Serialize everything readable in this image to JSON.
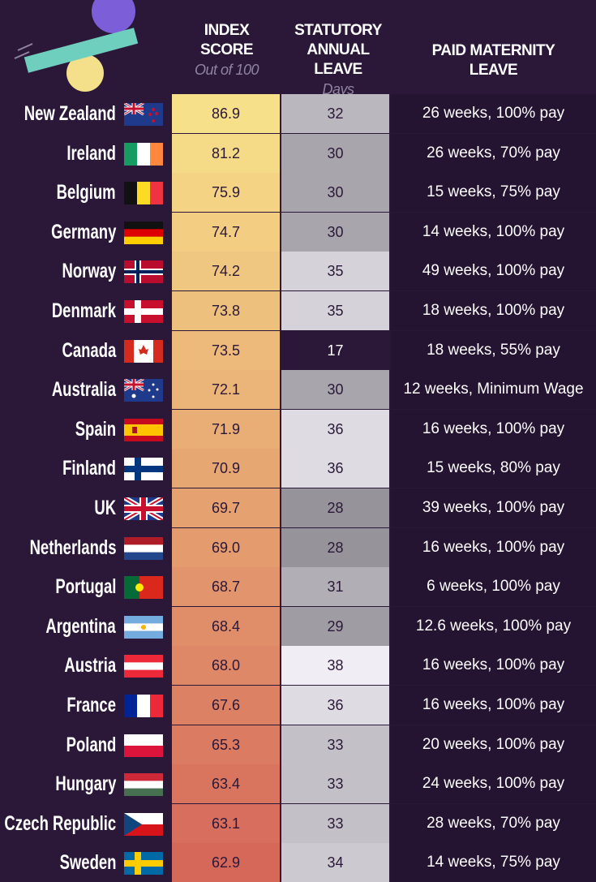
{
  "header": {
    "columns": [
      {
        "lines": [
          "INDEX",
          "SCORE"
        ],
        "unit": "Out of 100"
      },
      {
        "lines": [
          "STATUTORY",
          "ANNUAL LEAVE"
        ],
        "unit": "Days"
      },
      {
        "lines": [
          "PAID MATERNITY",
          "LEAVE"
        ]
      }
    ]
  },
  "table": {
    "rows": [
      [
        "New Zealand",
        "86.9",
        "32",
        "26 weeks, 100% pay"
      ],
      [
        "Ireland",
        "81.2",
        "30",
        "26 weeks, 70% pay"
      ],
      [
        "Belgium",
        "75.9",
        "30",
        "15 weeks, 75% pay"
      ],
      [
        "Germany",
        "74.7",
        "30",
        "14 weeks, 100% pay"
      ],
      [
        "Norway",
        "74.2",
        "35",
        "49 weeks, 100% pay"
      ],
      [
        "Denmark",
        "73.8",
        "35",
        "18 weeks, 100% pay"
      ],
      [
        "Canada",
        "73.5",
        "17",
        "18 weeks, 55% pay"
      ],
      [
        "Australia",
        "72.1",
        "30",
        "12 weeks, Minimum Wage"
      ],
      [
        "Spain",
        "71.9",
        "36",
        "16 weeks, 100% pay"
      ],
      [
        "Finland",
        "70.9",
        "36",
        "15 weeks, 80% pay"
      ],
      [
        "UK",
        "69.7",
        "28",
        "39 weeks, 100% pay"
      ],
      [
        "Netherlands",
        "69.0",
        "28",
        "16 weeks, 100% pay"
      ],
      [
        "Portugal",
        "68.7",
        "31",
        "6 weeks, 100% pay"
      ],
      [
        "Argentina",
        "68.4",
        "29",
        "12.6 weeks, 100% pay"
      ],
      [
        "Austria",
        "68.0",
        "38",
        "16 weeks, 100% pay"
      ],
      [
        "France",
        "67.6",
        "36",
        "16 weeks, 100% pay"
      ],
      [
        "Poland",
        "65.3",
        "33",
        "20 weeks, 100% pay"
      ],
      [
        "Hungary",
        "63.4",
        "33",
        "24 weeks, 100% pay"
      ],
      [
        "Czech Republic",
        "63.1",
        "33",
        "28 weeks, 70% pay"
      ],
      [
        "Sweden",
        "62.9",
        "34",
        "14 weeks, 75% pay"
      ]
    ]
  }
}
